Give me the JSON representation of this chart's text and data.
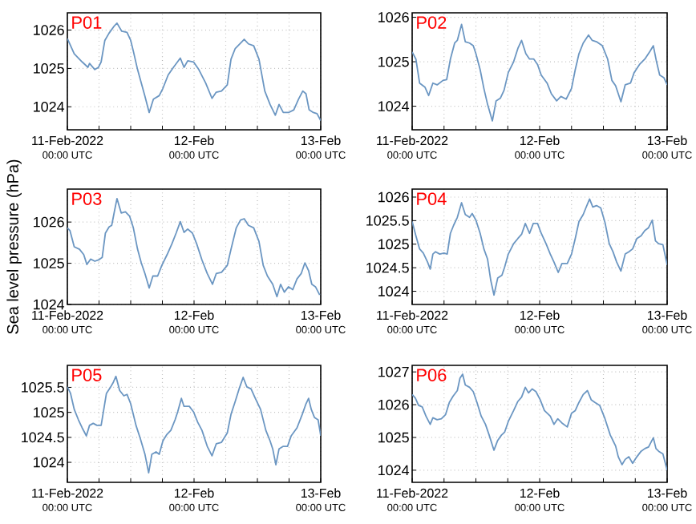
{
  "chart_data": [
    {
      "type": "line",
      "title": "P01",
      "color": "#6b96c2",
      "grid": true,
      "xlim": [
        "2022-02-11T00:00",
        "2022-02-13T00:00"
      ],
      "ylim": [
        1023.4,
        1026.45
      ],
      "yticks": [
        1024,
        1025,
        1026
      ],
      "xticks": [
        {
          "value": "2022-02-11T00:00",
          "label": "11-Feb-2022\n00:00 UTC"
        },
        {
          "value": "2022-02-11T06:00",
          "label": null
        },
        {
          "value": "2022-02-11T12:00",
          "label": null
        },
        {
          "value": "2022-02-11T18:00",
          "label": null
        },
        {
          "value": "2022-02-12T00:00",
          "label": "12-Feb\n00:00 UTC"
        },
        {
          "value": "2022-02-12T06:00",
          "label": null
        },
        {
          "value": "2022-02-12T12:00",
          "label": null
        },
        {
          "value": "2022-02-12T18:00",
          "label": null
        },
        {
          "value": "2022-02-13T00:00",
          "label": "13-Feb\n00:00 UTC"
        }
      ],
      "x": [
        "2022-02-11T00:00",
        "2022-02-11T01:18",
        "2022-02-11T02:48",
        "2022-02-11T03:54",
        "2022-02-11T04:12",
        "2022-02-11T05:12",
        "2022-02-11T05:54",
        "2022-02-11T06:24",
        "2022-02-11T07:06",
        "2022-02-11T07:54",
        "2022-02-11T08:54",
        "2022-02-11T09:24",
        "2022-02-11T10:18",
        "2022-02-11T11:18",
        "2022-02-11T12:00",
        "2022-02-11T12:30",
        "2022-02-11T13:18",
        "2022-02-11T14:00",
        "2022-02-11T14:42",
        "2022-02-11T15:30",
        "2022-02-11T16:18",
        "2022-02-11T17:24",
        "2022-02-11T18:06",
        "2022-02-11T19:06",
        "2022-02-11T20:06",
        "2022-02-11T21:24",
        "2022-02-11T22:06",
        "2022-02-11T22:48",
        "2022-02-11T23:54",
        "2022-02-12T00:54",
        "2022-02-12T02:12",
        "2022-02-12T03:24",
        "2022-02-12T04:12",
        "2022-02-12T05:12",
        "2022-02-12T06:18",
        "2022-02-12T07:00",
        "2022-02-12T07:48",
        "2022-02-12T08:48",
        "2022-02-12T09:30",
        "2022-02-12T10:18",
        "2022-02-12T11:18",
        "2022-02-12T12:18",
        "2022-02-12T13:24",
        "2022-02-12T14:24",
        "2022-02-12T15:24",
        "2022-02-12T16:06",
        "2022-02-12T16:54",
        "2022-02-12T17:54",
        "2022-02-12T18:54",
        "2022-02-12T19:48",
        "2022-02-12T20:36",
        "2022-02-12T21:12",
        "2022-02-12T21:48",
        "2022-02-12T22:36",
        "2022-02-12T23:18",
        "2022-02-13T00:00"
      ],
      "values": [
        1025.78,
        1025.38,
        1025.17,
        1025.03,
        1025.13,
        1024.97,
        1025.03,
        1025.17,
        1025.73,
        1025.92,
        1026.11,
        1026.18,
        1025.97,
        1025.94,
        1025.73,
        1025.45,
        1024.97,
        1024.62,
        1024.27,
        1023.85,
        1024.2,
        1024.29,
        1024.48,
        1024.83,
        1025.03,
        1025.27,
        1025.03,
        1025.2,
        1025.17,
        1024.97,
        1024.62,
        1024.22,
        1024.38,
        1024.41,
        1024.57,
        1025.24,
        1025.52,
        1025.66,
        1025.76,
        1025.64,
        1025.59,
        1025.24,
        1024.41,
        1024.06,
        1023.78,
        1024.06,
        1023.85,
        1023.85,
        1023.92,
        1024.2,
        1024.41,
        1024.34,
        1023.92,
        1023.85,
        1023.82,
        1023.64
      ]
    },
    {
      "type": "line",
      "title": "P02",
      "color": "#6b96c2",
      "grid": true,
      "xlim": [
        "2022-02-11T00:00",
        "2022-02-13T00:00"
      ],
      "ylim": [
        1023.47,
        1026.1
      ],
      "yticks": [
        1024,
        1025,
        1026
      ],
      "xticks": [
        {
          "value": "2022-02-11T00:00",
          "label": "11-Feb-2022\n00:00 UTC"
        },
        {
          "value": "2022-02-11T06:00",
          "label": null
        },
        {
          "value": "2022-02-11T12:00",
          "label": null
        },
        {
          "value": "2022-02-11T18:00",
          "label": null
        },
        {
          "value": "2022-02-12T00:00",
          "label": "12-Feb\n00:00 UTC"
        },
        {
          "value": "2022-02-12T06:00",
          "label": null
        },
        {
          "value": "2022-02-12T12:00",
          "label": null
        },
        {
          "value": "2022-02-12T18:00",
          "label": null
        },
        {
          "value": "2022-02-13T00:00",
          "label": "13-Feb\n00:00 UTC"
        }
      ],
      "x": [
        "2022-02-11T00:00",
        "2022-02-11T00:42",
        "2022-02-11T01:24",
        "2022-02-11T02:24",
        "2022-02-11T03:06",
        "2022-02-11T03:54",
        "2022-02-11T04:42",
        "2022-02-11T05:48",
        "2022-02-11T06:30",
        "2022-02-11T07:12",
        "2022-02-11T08:00",
        "2022-02-11T08:30",
        "2022-02-11T09:18",
        "2022-02-11T10:00",
        "2022-02-11T10:48",
        "2022-02-11T11:30",
        "2022-02-11T12:00",
        "2022-02-11T12:48",
        "2022-02-11T13:30",
        "2022-02-11T14:12",
        "2022-02-11T15:06",
        "2022-02-11T15:48",
        "2022-02-11T16:36",
        "2022-02-11T17:18",
        "2022-02-11T18:06",
        "2022-02-11T19:06",
        "2022-02-11T19:54",
        "2022-02-11T20:36",
        "2022-02-11T21:24",
        "2022-02-11T22:06",
        "2022-02-11T22:54",
        "2022-02-11T23:36",
        "2022-02-12T00:18",
        "2022-02-12T01:24",
        "2022-02-12T02:12",
        "2022-02-12T03:12",
        "2022-02-12T04:00",
        "2022-02-12T05:00",
        "2022-02-12T06:00",
        "2022-02-12T06:42",
        "2022-02-12T07:24",
        "2022-02-12T08:12",
        "2022-02-12T09:12",
        "2022-02-12T09:54",
        "2022-02-12T10:42",
        "2022-02-12T11:48",
        "2022-02-12T12:48",
        "2022-02-12T13:36",
        "2022-02-12T14:18",
        "2022-02-12T15:18",
        "2022-02-12T16:06",
        "2022-02-12T17:06",
        "2022-02-12T17:48",
        "2022-02-12T18:48",
        "2022-02-12T19:48",
        "2022-02-12T20:48",
        "2022-02-12T21:24",
        "2022-02-12T22:00",
        "2022-02-12T22:36",
        "2022-02-12T23:24",
        "2022-02-13T00:00"
      ],
      "values": [
        1025.22,
        1025.06,
        1024.52,
        1024.43,
        1024.24,
        1024.52,
        1024.48,
        1024.58,
        1024.6,
        1025.06,
        1025.42,
        1025.48,
        1025.84,
        1025.45,
        1025.42,
        1025.36,
        1025.18,
        1024.82,
        1024.4,
        1024.04,
        1023.67,
        1024.12,
        1024.18,
        1024.36,
        1024.76,
        1025,
        1025.3,
        1025.48,
        1025.18,
        1025.06,
        1025.06,
        1024.94,
        1024.7,
        1024.52,
        1024.28,
        1024.12,
        1024.22,
        1024.16,
        1024.4,
        1024.82,
        1025.18,
        1025.42,
        1025.6,
        1025.48,
        1025.45,
        1025.36,
        1025.06,
        1024.58,
        1024.46,
        1024.1,
        1024.48,
        1024.52,
        1024.76,
        1024.94,
        1025.06,
        1025.24,
        1025.36,
        1025,
        1024.7,
        1024.64,
        1024.48
      ]
    },
    {
      "type": "line",
      "title": "P03",
      "ylabel": "Sea level pressure (hPa)",
      "color": "#6b96c2",
      "grid": true,
      "xlim": [
        "2022-02-11T00:00",
        "2022-02-13T00:00"
      ],
      "ylim": [
        1024,
        1026.8
      ],
      "yticks": [
        1024,
        1025,
        1026
      ],
      "xticks": [
        {
          "value": "2022-02-11T00:00",
          "label": "11-Feb-2022\n00:00 UTC"
        },
        {
          "value": "2022-02-11T06:00",
          "label": null
        },
        {
          "value": "2022-02-11T12:00",
          "label": null
        },
        {
          "value": "2022-02-11T18:00",
          "label": null
        },
        {
          "value": "2022-02-12T00:00",
          "label": "12-Feb\n00:00 UTC"
        },
        {
          "value": "2022-02-12T06:00",
          "label": null
        },
        {
          "value": "2022-02-12T12:00",
          "label": null
        },
        {
          "value": "2022-02-12T18:00",
          "label": null
        },
        {
          "value": "2022-02-13T00:00",
          "label": "13-Feb\n00:00 UTC"
        }
      ],
      "x": [
        "2022-02-11T00:00",
        "2022-02-11T00:30",
        "2022-02-11T01:18",
        "2022-02-11T02:18",
        "2022-02-11T03:06",
        "2022-02-11T03:42",
        "2022-02-11T04:24",
        "2022-02-11T05:12",
        "2022-02-11T05:54",
        "2022-02-11T06:36",
        "2022-02-11T07:12",
        "2022-02-11T07:54",
        "2022-02-11T08:24",
        "2022-02-11T08:54",
        "2022-02-11T09:24",
        "2022-02-11T10:12",
        "2022-02-11T11:00",
        "2022-02-11T11:48",
        "2022-02-11T12:30",
        "2022-02-11T13:18",
        "2022-02-11T14:00",
        "2022-02-11T14:42",
        "2022-02-11T15:30",
        "2022-02-11T16:12",
        "2022-02-11T17:06",
        "2022-02-11T17:54",
        "2022-02-11T18:54",
        "2022-02-11T19:48",
        "2022-02-11T20:36",
        "2022-02-11T21:24",
        "2022-02-11T22:06",
        "2022-02-11T22:48",
        "2022-02-11T23:42",
        "2022-02-12T00:30",
        "2022-02-12T01:30",
        "2022-02-12T02:30",
        "2022-02-12T03:30",
        "2022-02-12T04:12",
        "2022-02-12T05:12",
        "2022-02-12T06:18",
        "2022-02-12T07:00",
        "2022-02-12T08:00",
        "2022-02-12T08:48",
        "2022-02-12T09:30",
        "2022-02-12T10:18",
        "2022-02-12T11:18",
        "2022-02-12T12:18",
        "2022-02-12T13:06",
        "2022-02-12T13:54",
        "2022-02-12T14:54",
        "2022-02-12T15:42",
        "2022-02-12T16:24",
        "2022-02-12T17:06",
        "2022-02-12T17:54",
        "2022-02-12T18:42",
        "2022-02-12T19:30",
        "2022-02-12T20:18",
        "2022-02-12T21:00",
        "2022-02-12T21:42",
        "2022-02-12T22:18",
        "2022-02-12T23:00",
        "2022-02-12T23:48"
      ],
      "values": [
        1025.86,
        1025.79,
        1025.4,
        1025.34,
        1025.21,
        1024.97,
        1025.1,
        1025.05,
        1025.08,
        1025.14,
        1025.73,
        1025.88,
        1025.92,
        1026.25,
        1026.57,
        1026.22,
        1026.25,
        1026.14,
        1025.86,
        1025.34,
        1025.01,
        1024.75,
        1024.4,
        1024.69,
        1024.69,
        1024.95,
        1025.21,
        1025.47,
        1025.73,
        1026.01,
        1025.75,
        1025.83,
        1025.73,
        1025.47,
        1025.08,
        1024.75,
        1024.49,
        1024.75,
        1024.78,
        1024.95,
        1025.34,
        1025.86,
        1026.05,
        1026.08,
        1025.92,
        1025.86,
        1025.53,
        1024.95,
        1024.69,
        1024.49,
        1024.19,
        1024.49,
        1024.3,
        1024.43,
        1024.36,
        1024.62,
        1024.75,
        1025.01,
        1024.82,
        1024.49,
        1024.43,
        1024.23
      ]
    },
    {
      "type": "line",
      "title": "P04",
      "color": "#6b96c2",
      "grid": true,
      "xlim": [
        "2022-02-11T00:00",
        "2022-02-13T00:00"
      ],
      "ylim": [
        1023.72,
        1026.17
      ],
      "yticks": [
        1024,
        1024.5,
        1025,
        1025.5,
        1026
      ],
      "xticks": [
        {
          "value": "2022-02-11T00:00",
          "label": "11-Feb-2022\n00:00 UTC"
        },
        {
          "value": "2022-02-11T06:00",
          "label": null
        },
        {
          "value": "2022-02-11T12:00",
          "label": null
        },
        {
          "value": "2022-02-11T18:00",
          "label": null
        },
        {
          "value": "2022-02-12T00:00",
          "label": "12-Feb\n00:00 UTC"
        },
        {
          "value": "2022-02-12T06:00",
          "label": null
        },
        {
          "value": "2022-02-12T12:00",
          "label": null
        },
        {
          "value": "2022-02-12T18:00",
          "label": null
        },
        {
          "value": "2022-02-13T00:00",
          "label": "13-Feb\n00:00 UTC"
        }
      ],
      "x": [
        "2022-02-11T00:00",
        "2022-02-11T00:42",
        "2022-02-11T01:24",
        "2022-02-11T02:06",
        "2022-02-11T02:54",
        "2022-02-11T03:24",
        "2022-02-11T03:54",
        "2022-02-11T04:24",
        "2022-02-11T05:12",
        "2022-02-11T06:00",
        "2022-02-11T06:36",
        "2022-02-11T07:12",
        "2022-02-11T07:48",
        "2022-02-11T08:30",
        "2022-02-11T09:18",
        "2022-02-11T10:00",
        "2022-02-11T10:48",
        "2022-02-11T11:18",
        "2022-02-11T12:00",
        "2022-02-11T12:48",
        "2022-02-11T13:30",
        "2022-02-11T14:12",
        "2022-02-11T14:48",
        "2022-02-11T15:24",
        "2022-02-11T16:06",
        "2022-02-11T16:54",
        "2022-02-11T17:24",
        "2022-02-11T18:06",
        "2022-02-11T19:06",
        "2022-02-11T19:54",
        "2022-02-11T20:36",
        "2022-02-11T21:18",
        "2022-02-11T22:06",
        "2022-02-11T22:48",
        "2022-02-11T23:36",
        "2022-02-12T00:18",
        "2022-02-12T01:12",
        "2022-02-12T02:00",
        "2022-02-12T02:42",
        "2022-02-12T03:30",
        "2022-02-12T04:12",
        "2022-02-12T05:12",
        "2022-02-12T06:00",
        "2022-02-12T06:42",
        "2022-02-12T07:24",
        "2022-02-12T08:12",
        "2022-02-12T08:42",
        "2022-02-12T09:24",
        "2022-02-12T10:00",
        "2022-02-12T10:42",
        "2022-02-12T11:30",
        "2022-02-12T12:18",
        "2022-02-12T13:06",
        "2022-02-12T13:48",
        "2022-02-12T14:30",
        "2022-02-12T15:18",
        "2022-02-12T16:06",
        "2022-02-12T16:48",
        "2022-02-12T17:30",
        "2022-02-12T18:18",
        "2022-02-12T19:06",
        "2022-02-12T19:48",
        "2022-02-12T20:30",
        "2022-02-12T21:12",
        "2022-02-12T21:48",
        "2022-02-12T22:24",
        "2022-02-12T23:12",
        "2022-02-13T00:00"
      ],
      "values": [
        1025.48,
        1025.18,
        1024.9,
        1024.81,
        1024.62,
        1024.47,
        1024.79,
        1024.84,
        1024.79,
        1024.81,
        1024.79,
        1025.23,
        1025.4,
        1025.57,
        1025.88,
        1025.63,
        1025.57,
        1025.65,
        1025.51,
        1025.23,
        1024.9,
        1024.68,
        1024.23,
        1023.92,
        1024.28,
        1024.34,
        1024.51,
        1024.79,
        1025.01,
        1025.12,
        1025.21,
        1025.44,
        1025.23,
        1025.44,
        1025.44,
        1025.23,
        1025.01,
        1024.79,
        1024.62,
        1024.4,
        1024.59,
        1024.59,
        1024.79,
        1025.12,
        1025.48,
        1025.63,
        1025.77,
        1025.96,
        1025.79,
        1025.82,
        1025.77,
        1025.46,
        1025.01,
        1024.84,
        1024.62,
        1024.43,
        1024.79,
        1024.84,
        1024.9,
        1025.12,
        1025.18,
        1025.29,
        1025.35,
        1025.51,
        1025.07,
        1025.01,
        1024.99,
        1024.56
      ]
    },
    {
      "type": "line",
      "title": "P05",
      "color": "#6b96c2",
      "grid": true,
      "xlim": [
        "2022-02-11T00:00",
        "2022-02-13T00:00"
      ],
      "ylim": [
        1023.6,
        1025.94
      ],
      "yticks": [
        1024,
        1024.5,
        1025,
        1025.5
      ],
      "xticks": [
        {
          "value": "2022-02-11T00:00",
          "label": "11-Feb-2022\n00:00 UTC"
        },
        {
          "value": "2022-02-11T06:00",
          "label": null
        },
        {
          "value": "2022-02-11T12:00",
          "label": null
        },
        {
          "value": "2022-02-11T18:00",
          "label": null
        },
        {
          "value": "2022-02-12T00:00",
          "label": "12-Feb\n00:00 UTC"
        },
        {
          "value": "2022-02-12T06:00",
          "label": null
        },
        {
          "value": "2022-02-12T12:00",
          "label": null
        },
        {
          "value": "2022-02-12T18:00",
          "label": null
        },
        {
          "value": "2022-02-13T00:00",
          "label": "13-Feb\n00:00 UTC"
        }
      ],
      "x": [
        "2022-02-11T00:00",
        "2022-02-11T00:36",
        "2022-02-11T01:18",
        "2022-02-11T02:06",
        "2022-02-11T02:48",
        "2022-02-11T03:36",
        "2022-02-11T04:12",
        "2022-02-11T04:54",
        "2022-02-11T05:36",
        "2022-02-11T06:24",
        "2022-02-11T06:54",
        "2022-02-11T07:24",
        "2022-02-11T08:06",
        "2022-02-11T08:42",
        "2022-02-11T09:12",
        "2022-02-11T09:54",
        "2022-02-11T10:42",
        "2022-02-11T11:18",
        "2022-02-11T12:00",
        "2022-02-11T13:00",
        "2022-02-11T13:48",
        "2022-02-11T14:42",
        "2022-02-11T15:24",
        "2022-02-11T16:00",
        "2022-02-11T16:48",
        "2022-02-11T17:24",
        "2022-02-11T18:06",
        "2022-02-11T18:48",
        "2022-02-11T19:36",
        "2022-02-11T20:24",
        "2022-02-11T20:54",
        "2022-02-11T21:36",
        "2022-02-11T22:06",
        "2022-02-11T23:06",
        "2022-02-11T23:54",
        "2022-02-12T00:42",
        "2022-02-12T01:30",
        "2022-02-12T02:30",
        "2022-02-12T03:24",
        "2022-02-12T04:12",
        "2022-02-12T05:12",
        "2022-02-12T06:18",
        "2022-02-12T07:00",
        "2022-02-12T07:48",
        "2022-02-12T08:36",
        "2022-02-12T09:18",
        "2022-02-12T10:00",
        "2022-02-12T10:48",
        "2022-02-12T11:36",
        "2022-02-12T12:36",
        "2022-02-12T13:36",
        "2022-02-12T14:24",
        "2022-02-12T14:54",
        "2022-02-12T15:30",
        "2022-02-12T16:06",
        "2022-02-12T16:54",
        "2022-02-12T17:42",
        "2022-02-12T18:24",
        "2022-02-12T19:30",
        "2022-02-12T20:30",
        "2022-02-12T21:12",
        "2022-02-12T21:42",
        "2022-02-12T22:12",
        "2022-02-12T22:48",
        "2022-02-12T23:30",
        "2022-02-13T00:00"
      ],
      "values": [
        1025.51,
        1025.38,
        1025.06,
        1024.85,
        1024.69,
        1024.53,
        1024.74,
        1024.78,
        1024.74,
        1024.74,
        1025.06,
        1025.38,
        1025.49,
        1025.6,
        1025.72,
        1025.44,
        1025.33,
        1025.36,
        1025.17,
        1024.74,
        1024.48,
        1024.16,
        1023.79,
        1024.16,
        1024.21,
        1024.16,
        1024.43,
        1024.55,
        1024.64,
        1024.85,
        1025.01,
        1025.28,
        1025.12,
        1025.12,
        1025.01,
        1024.8,
        1024.64,
        1024.32,
        1024.13,
        1024.37,
        1024.4,
        1024.59,
        1024.96,
        1025.22,
        1025.49,
        1025.7,
        1025.51,
        1025.47,
        1025.28,
        1025.06,
        1024.64,
        1024.43,
        1024.27,
        1023.95,
        1024.27,
        1024.32,
        1024.32,
        1024.53,
        1024.69,
        1024.96,
        1025.17,
        1025.28,
        1025.06,
        1024.9,
        1024.85,
        1024.53
      ]
    },
    {
      "type": "line",
      "title": "P06",
      "color": "#6b96c2",
      "grid": true,
      "xlim": [
        "2022-02-11T00:00",
        "2022-02-13T00:00"
      ],
      "ylim": [
        1023.63,
        1027.2
      ],
      "yticks": [
        1024,
        1025,
        1026,
        1027
      ],
      "xticks": [
        {
          "value": "2022-02-11T00:00",
          "label": "11-Feb-2022\n00:00 UTC"
        },
        {
          "value": "2022-02-11T06:00",
          "label": null
        },
        {
          "value": "2022-02-11T12:00",
          "label": null
        },
        {
          "value": "2022-02-11T18:00",
          "label": null
        },
        {
          "value": "2022-02-12T00:00",
          "label": "12-Feb\n00:00 UTC"
        },
        {
          "value": "2022-02-12T06:00",
          "label": null
        },
        {
          "value": "2022-02-12T12:00",
          "label": null
        },
        {
          "value": "2022-02-12T18:00",
          "label": null
        },
        {
          "value": "2022-02-13T00:00",
          "label": "13-Feb\n00:00 UTC"
        }
      ],
      "x": [
        "2022-02-11T00:00",
        "2022-02-11T00:36",
        "2022-02-11T01:12",
        "2022-02-11T01:54",
        "2022-02-11T02:36",
        "2022-02-11T03:24",
        "2022-02-11T03:54",
        "2022-02-11T04:42",
        "2022-02-11T05:30",
        "2022-02-11T06:18",
        "2022-02-11T07:00",
        "2022-02-11T07:42",
        "2022-02-11T08:30",
        "2022-02-11T09:00",
        "2022-02-11T09:30",
        "2022-02-11T10:00",
        "2022-02-11T10:48",
        "2022-02-11T11:30",
        "2022-02-11T12:12",
        "2022-02-11T13:00",
        "2022-02-11T13:48",
        "2022-02-11T14:30",
        "2022-02-11T15:24",
        "2022-02-11T16:06",
        "2022-02-11T16:48",
        "2022-02-11T17:24",
        "2022-02-11T18:06",
        "2022-02-11T19:06",
        "2022-02-11T19:54",
        "2022-02-11T20:36",
        "2022-02-11T21:18",
        "2022-02-11T21:54",
        "2022-02-11T22:36",
        "2022-02-11T23:18",
        "2022-02-12T00:06",
        "2022-02-12T00:54",
        "2022-02-12T02:00",
        "2022-02-12T02:42",
        "2022-02-12T03:24",
        "2022-02-12T04:12",
        "2022-02-12T05:12",
        "2022-02-12T06:00",
        "2022-02-12T06:42",
        "2022-02-12T07:24",
        "2022-02-12T08:12",
        "2022-02-12T09:00",
        "2022-02-12T09:42",
        "2022-02-12T10:24",
        "2022-02-12T11:18",
        "2022-02-12T12:18",
        "2022-02-12T13:18",
        "2022-02-12T14:18",
        "2022-02-12T14:48",
        "2022-02-12T15:30",
        "2022-02-12T16:06",
        "2022-02-12T16:48",
        "2022-02-12T17:30",
        "2022-02-12T18:18",
        "2022-02-12T19:06",
        "2022-02-12T19:48",
        "2022-02-12T20:30",
        "2022-02-12T21:24",
        "2022-02-12T21:54",
        "2022-02-12T22:24",
        "2022-02-12T23:12",
        "2022-02-13T00:00"
      ],
      "values": [
        1026.31,
        1026.2,
        1025.98,
        1025.93,
        1025.65,
        1025.4,
        1025.6,
        1025.54,
        1025.57,
        1025.7,
        1026.07,
        1026.26,
        1026.43,
        1026.81,
        1026.93,
        1026.6,
        1026.53,
        1026.4,
        1026.07,
        1025.65,
        1025.4,
        1025.07,
        1024.61,
        1024.91,
        1025.07,
        1025.16,
        1025.49,
        1025.82,
        1026.1,
        1026.23,
        1026.53,
        1026.36,
        1026.48,
        1026.4,
        1026.15,
        1025.82,
        1025.65,
        1025.4,
        1025.57,
        1025.44,
        1025.32,
        1025.74,
        1025.82,
        1026.07,
        1026.31,
        1026.43,
        1026.15,
        1026.07,
        1025.98,
        1025.57,
        1025.07,
        1024.74,
        1024.41,
        1024.17,
        1024.33,
        1024.41,
        1024.21,
        1024.41,
        1024.58,
        1024.66,
        1024.71,
        1024.99,
        1024.66,
        1024.58,
        1024.5,
        1024
      ]
    }
  ]
}
